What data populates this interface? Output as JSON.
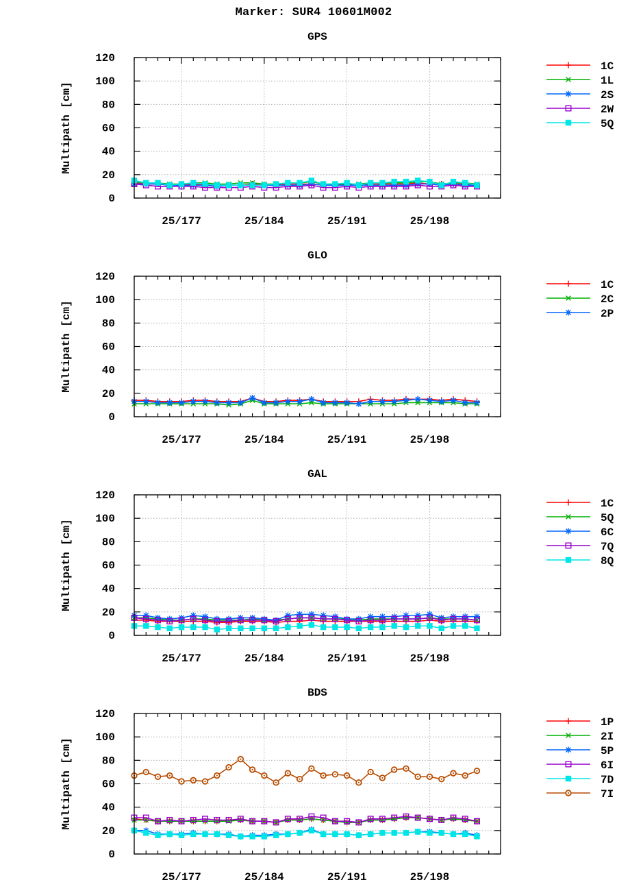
{
  "page_title": "Marker: SUR4 10601M002",
  "chart_data": [
    {
      "type": "line",
      "title": "GPS",
      "ylabel": "Multipath [cm]",
      "xlabel": "",
      "ylim": [
        0,
        120
      ],
      "yticks": [
        0,
        20,
        40,
        60,
        80,
        100,
        120
      ],
      "xlim": [
        173,
        204
      ],
      "xticks": [
        {
          "x": 177,
          "label": "25/177"
        },
        {
          "x": 184,
          "label": "25/184"
        },
        {
          "x": 191,
          "label": "25/191"
        },
        {
          "x": 198,
          "label": "25/198"
        }
      ],
      "grid": true,
      "legend_placement": "right",
      "x": [
        173,
        174,
        175,
        176,
        177,
        178,
        179,
        180,
        181,
        182,
        183,
        184,
        185,
        186,
        187,
        188,
        189,
        190,
        191,
        192,
        193,
        194,
        195,
        196,
        197,
        198,
        199,
        200,
        201,
        202
      ],
      "series": [
        {
          "name": "1C",
          "color": "#ff0000",
          "marker": "plus",
          "values": [
            13,
            12,
            12,
            11,
            11,
            12,
            11,
            11,
            11,
            11,
            12,
            11,
            11,
            12,
            12,
            12,
            11,
            11,
            12,
            11,
            12,
            12,
            12,
            12,
            13,
            12,
            12,
            12,
            12,
            11
          ]
        },
        {
          "name": "1L",
          "color": "#00b000",
          "marker": "x",
          "values": [
            14,
            13,
            13,
            12,
            12,
            13,
            13,
            12,
            12,
            13,
            13,
            12,
            12,
            13,
            13,
            14,
            12,
            12,
            12,
            12,
            13,
            13,
            13,
            13,
            14,
            14,
            12,
            13,
            13,
            12
          ]
        },
        {
          "name": "2S",
          "color": "#0066ff",
          "marker": "star",
          "values": [
            12,
            12,
            12,
            11,
            11,
            11,
            11,
            10,
            11,
            11,
            11,
            11,
            11,
            11,
            11,
            12,
            11,
            11,
            11,
            11,
            11,
            11,
            11,
            11,
            12,
            12,
            11,
            12,
            11,
            11
          ]
        },
        {
          "name": "2W",
          "color": "#9900cc",
          "marker": "open-square",
          "values": [
            12,
            11,
            10,
            10,
            10,
            10,
            9,
            9,
            9,
            9,
            10,
            9,
            9,
            10,
            10,
            11,
            9,
            9,
            10,
            9,
            10,
            10,
            10,
            10,
            11,
            10,
            10,
            11,
            10,
            10
          ]
        },
        {
          "name": "5Q",
          "color": "#00e6e6",
          "marker": "filled-square",
          "values": [
            15,
            13,
            13,
            11,
            12,
            13,
            12,
            11,
            11,
            11,
            11,
            11,
            12,
            13,
            13,
            15,
            12,
            12,
            13,
            11,
            13,
            13,
            14,
            14,
            15,
            14,
            11,
            14,
            13,
            11
          ]
        }
      ]
    },
    {
      "type": "line",
      "title": "GLO",
      "ylabel": "Multipath [cm]",
      "xlabel": "",
      "ylim": [
        0,
        120
      ],
      "yticks": [
        0,
        20,
        40,
        60,
        80,
        100,
        120
      ],
      "xlim": [
        173,
        204
      ],
      "xticks": [
        {
          "x": 177,
          "label": "25/177"
        },
        {
          "x": 184,
          "label": "25/184"
        },
        {
          "x": 191,
          "label": "25/191"
        },
        {
          "x": 198,
          "label": "25/198"
        }
      ],
      "grid": true,
      "legend_placement": "right",
      "x": [
        173,
        174,
        175,
        176,
        177,
        178,
        179,
        180,
        181,
        182,
        183,
        184,
        185,
        186,
        187,
        188,
        189,
        190,
        191,
        192,
        193,
        194,
        195,
        196,
        197,
        198,
        199,
        200,
        201,
        202
      ],
      "series": [
        {
          "name": "1C",
          "color": "#ff0000",
          "marker": "plus",
          "values": [
            14,
            14,
            13,
            13,
            13,
            14,
            14,
            13,
            13,
            13,
            16,
            13,
            13,
            14,
            14,
            15,
            13,
            13,
            13,
            13,
            15,
            14,
            14,
            15,
            15,
            15,
            14,
            15,
            14,
            13
          ]
        },
        {
          "name": "2C",
          "color": "#00b000",
          "marker": "x",
          "values": [
            11,
            11,
            11,
            11,
            11,
            11,
            11,
            11,
            10,
            11,
            14,
            11,
            11,
            11,
            11,
            12,
            11,
            11,
            11,
            11,
            11,
            11,
            11,
            12,
            12,
            12,
            12,
            12,
            11,
            11
          ]
        },
        {
          "name": "2P",
          "color": "#0066ff",
          "marker": "star",
          "values": [
            13,
            13,
            12,
            12,
            12,
            13,
            13,
            12,
            12,
            12,
            16,
            12,
            12,
            13,
            13,
            15,
            12,
            12,
            12,
            11,
            13,
            13,
            13,
            14,
            15,
            14,
            13,
            14,
            12,
            12
          ]
        }
      ]
    },
    {
      "type": "line",
      "title": "GAL",
      "ylabel": "Multipath [cm]",
      "xlabel": "",
      "ylim": [
        0,
        120
      ],
      "yticks": [
        0,
        20,
        40,
        60,
        80,
        100,
        120
      ],
      "xlim": [
        173,
        204
      ],
      "xticks": [
        {
          "x": 177,
          "label": "25/177"
        },
        {
          "x": 184,
          "label": "25/184"
        },
        {
          "x": 191,
          "label": "25/191"
        },
        {
          "x": 198,
          "label": "25/198"
        }
      ],
      "grid": true,
      "legend_placement": "right",
      "x": [
        173,
        174,
        175,
        176,
        177,
        178,
        179,
        180,
        181,
        182,
        183,
        184,
        185,
        186,
        187,
        188,
        189,
        190,
        191,
        192,
        193,
        194,
        195,
        196,
        197,
        198,
        199,
        200,
        201,
        202
      ],
      "series": [
        {
          "name": "1C",
          "color": "#ff0000",
          "marker": "plus",
          "values": [
            13,
            13,
            12,
            12,
            12,
            12,
            12,
            11,
            11,
            12,
            12,
            12,
            11,
            12,
            12,
            13,
            12,
            12,
            12,
            12,
            12,
            12,
            12,
            12,
            12,
            13,
            12,
            12,
            12,
            12
          ]
        },
        {
          "name": "5Q",
          "color": "#00b000",
          "marker": "x",
          "values": [
            15,
            15,
            14,
            13,
            13,
            14,
            14,
            13,
            13,
            13,
            14,
            13,
            13,
            14,
            15,
            15,
            14,
            14,
            14,
            13,
            14,
            14,
            14,
            14,
            14,
            15,
            14,
            14,
            14,
            13
          ]
        },
        {
          "name": "6C",
          "color": "#0066ff",
          "marker": "star",
          "values": [
            17,
            17,
            15,
            14,
            15,
            17,
            16,
            14,
            14,
            15,
            15,
            14,
            13,
            17,
            18,
            18,
            17,
            16,
            14,
            14,
            16,
            16,
            16,
            17,
            17,
            18,
            15,
            16,
            16,
            16
          ]
        },
        {
          "name": "7Q",
          "color": "#9900cc",
          "marker": "open-square",
          "values": [
            15,
            14,
            13,
            12,
            13,
            14,
            13,
            12,
            12,
            13,
            13,
            13,
            12,
            14,
            15,
            15,
            14,
            14,
            13,
            12,
            13,
            13,
            14,
            14,
            14,
            15,
            13,
            14,
            14,
            13
          ]
        },
        {
          "name": "8Q",
          "color": "#00e6e6",
          "marker": "filled-square",
          "values": [
            8,
            8,
            7,
            6,
            7,
            7,
            7,
            5,
            6,
            6,
            6,
            6,
            6,
            7,
            8,
            9,
            7,
            7,
            7,
            6,
            7,
            7,
            8,
            7,
            8,
            8,
            6,
            8,
            8,
            6
          ]
        }
      ]
    },
    {
      "type": "line",
      "title": "BDS",
      "ylabel": "Multipath [cm]",
      "xlabel": "",
      "ylim": [
        0,
        120
      ],
      "yticks": [
        0,
        20,
        40,
        60,
        80,
        100,
        120
      ],
      "xlim": [
        173,
        204
      ],
      "xticks": [
        {
          "x": 177,
          "label": "25/177"
        },
        {
          "x": 184,
          "label": "25/184"
        },
        {
          "x": 191,
          "label": "25/191"
        },
        {
          "x": 198,
          "label": "25/198"
        }
      ],
      "grid": true,
      "legend_placement": "right",
      "x": [
        173,
        174,
        175,
        176,
        177,
        178,
        179,
        180,
        181,
        182,
        183,
        184,
        185,
        186,
        187,
        188,
        189,
        190,
        191,
        192,
        193,
        194,
        195,
        196,
        197,
        198,
        199,
        200,
        201,
        202
      ],
      "series": [
        {
          "name": "1P",
          "color": "#ff0000",
          "marker": "plus",
          "values": [
            30,
            29,
            28,
            28,
            28,
            28,
            28,
            28,
            29,
            29,
            28,
            28,
            27,
            29,
            29,
            30,
            29,
            28,
            27,
            27,
            29,
            29,
            30,
            31,
            31,
            30,
            29,
            30,
            29,
            28
          ]
        },
        {
          "name": "2I",
          "color": "#00b000",
          "marker": "x",
          "values": [
            29,
            29,
            28,
            28,
            28,
            28,
            28,
            28,
            28,
            29,
            28,
            28,
            27,
            29,
            29,
            30,
            29,
            28,
            27,
            27,
            29,
            29,
            30,
            31,
            31,
            30,
            29,
            30,
            29,
            28
          ]
        },
        {
          "name": "5P",
          "color": "#0066ff",
          "marker": "star",
          "values": [
            20,
            20,
            17,
            17,
            17,
            18,
            17,
            17,
            17,
            15,
            16,
            16,
            17,
            17,
            18,
            21,
            17,
            17,
            17,
            16,
            17,
            18,
            18,
            18,
            19,
            19,
            18,
            17,
            18,
            16
          ]
        },
        {
          "name": "6I",
          "color": "#9900cc",
          "marker": "open-square",
          "values": [
            31,
            31,
            28,
            29,
            28,
            29,
            30,
            29,
            29,
            30,
            28,
            28,
            27,
            30,
            30,
            32,
            31,
            28,
            28,
            27,
            30,
            30,
            31,
            32,
            31,
            30,
            29,
            31,
            30,
            28
          ]
        },
        {
          "name": "7D",
          "color": "#00e6e6",
          "marker": "filled-square",
          "values": [
            20,
            18,
            16,
            17,
            16,
            17,
            17,
            17,
            16,
            15,
            15,
            15,
            16,
            17,
            18,
            20,
            17,
            17,
            17,
            16,
            17,
            18,
            18,
            18,
            19,
            18,
            18,
            17,
            17,
            15
          ]
        },
        {
          "name": "7I",
          "color": "#b84c00",
          "marker": "open-circle",
          "values": [
            67,
            70,
            66,
            67,
            62,
            63,
            62,
            67,
            74,
            81,
            72,
            67,
            61,
            69,
            64,
            73,
            67,
            68,
            67,
            61,
            70,
            65,
            72,
            73,
            66,
            66,
            64,
            69,
            67,
            71
          ]
        }
      ]
    }
  ]
}
